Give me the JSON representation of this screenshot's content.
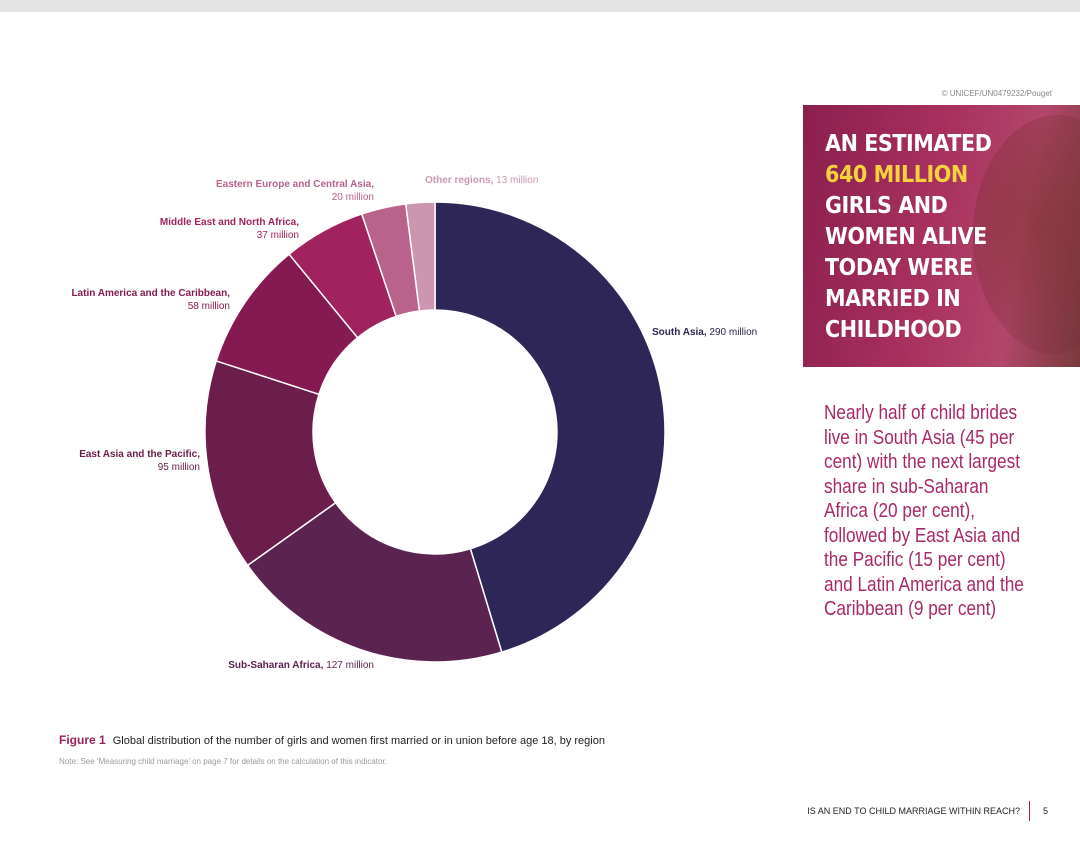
{
  "credit": "© UNICEF/UN0479232/Pouget",
  "hero": {
    "line1": "AN ESTIMATED",
    "highlight": "640 MILLION",
    "line3": "GIRLS AND",
    "line4": "WOMEN ALIVE",
    "line5": "TODAY WERE",
    "line6": "MARRIED IN",
    "line7": "CHILDHOOD"
  },
  "sidetext": "Nearly half of child brides live in South Asia (45 per cent) with the next largest share in sub-Saharan Africa (20 per cent), followed by East Asia and the Pacific (15 per cent) and Latin America and the Caribbean (9 per cent)",
  "caption": {
    "figure": "Figure 1",
    "text": "Global distribution of the number of girls and women first married or in union before age 18, by region",
    "note": "Note: See ‘Measuring child marriage’ on page 7 for details on the calculation of this indicator."
  },
  "footer": {
    "title": "IS AN END TO CHILD MARRIAGE WITHIN REACH?",
    "page": "5"
  },
  "chart_data": {
    "type": "pie",
    "donut": true,
    "title": "",
    "slices": [
      {
        "name": "South Asia,",
        "value": 290,
        "value_label": "290 million",
        "color": "#2e2656"
      },
      {
        "name": "Sub-Saharan Africa,",
        "value": 127,
        "value_label": "127 million",
        "color": "#5a2350"
      },
      {
        "name": "East Asia and the Pacific,",
        "value": 95,
        "value_label": "95 million",
        "color": "#6b1e4b"
      },
      {
        "name": "Latin America and the Caribbean,",
        "value": 58,
        "value_label": "58 million",
        "color": "#841a51"
      },
      {
        "name": "Middle East and North Africa,",
        "value": 37,
        "value_label": "37 million",
        "color": "#a0235f"
      },
      {
        "name": "Eastern Europe and Central Asia,",
        "value": 20,
        "value_label": "20 million",
        "color": "#b8628c"
      },
      {
        "name": "Other regions,",
        "value": 13,
        "value_label": "13 million",
        "color": "#cc96b0"
      }
    ],
    "label_colors": [
      "#2e2656",
      "#5a2350",
      "#6b1e4b",
      "#841a51",
      "#a0235f",
      "#b8628c",
      "#cc96b0"
    ]
  }
}
